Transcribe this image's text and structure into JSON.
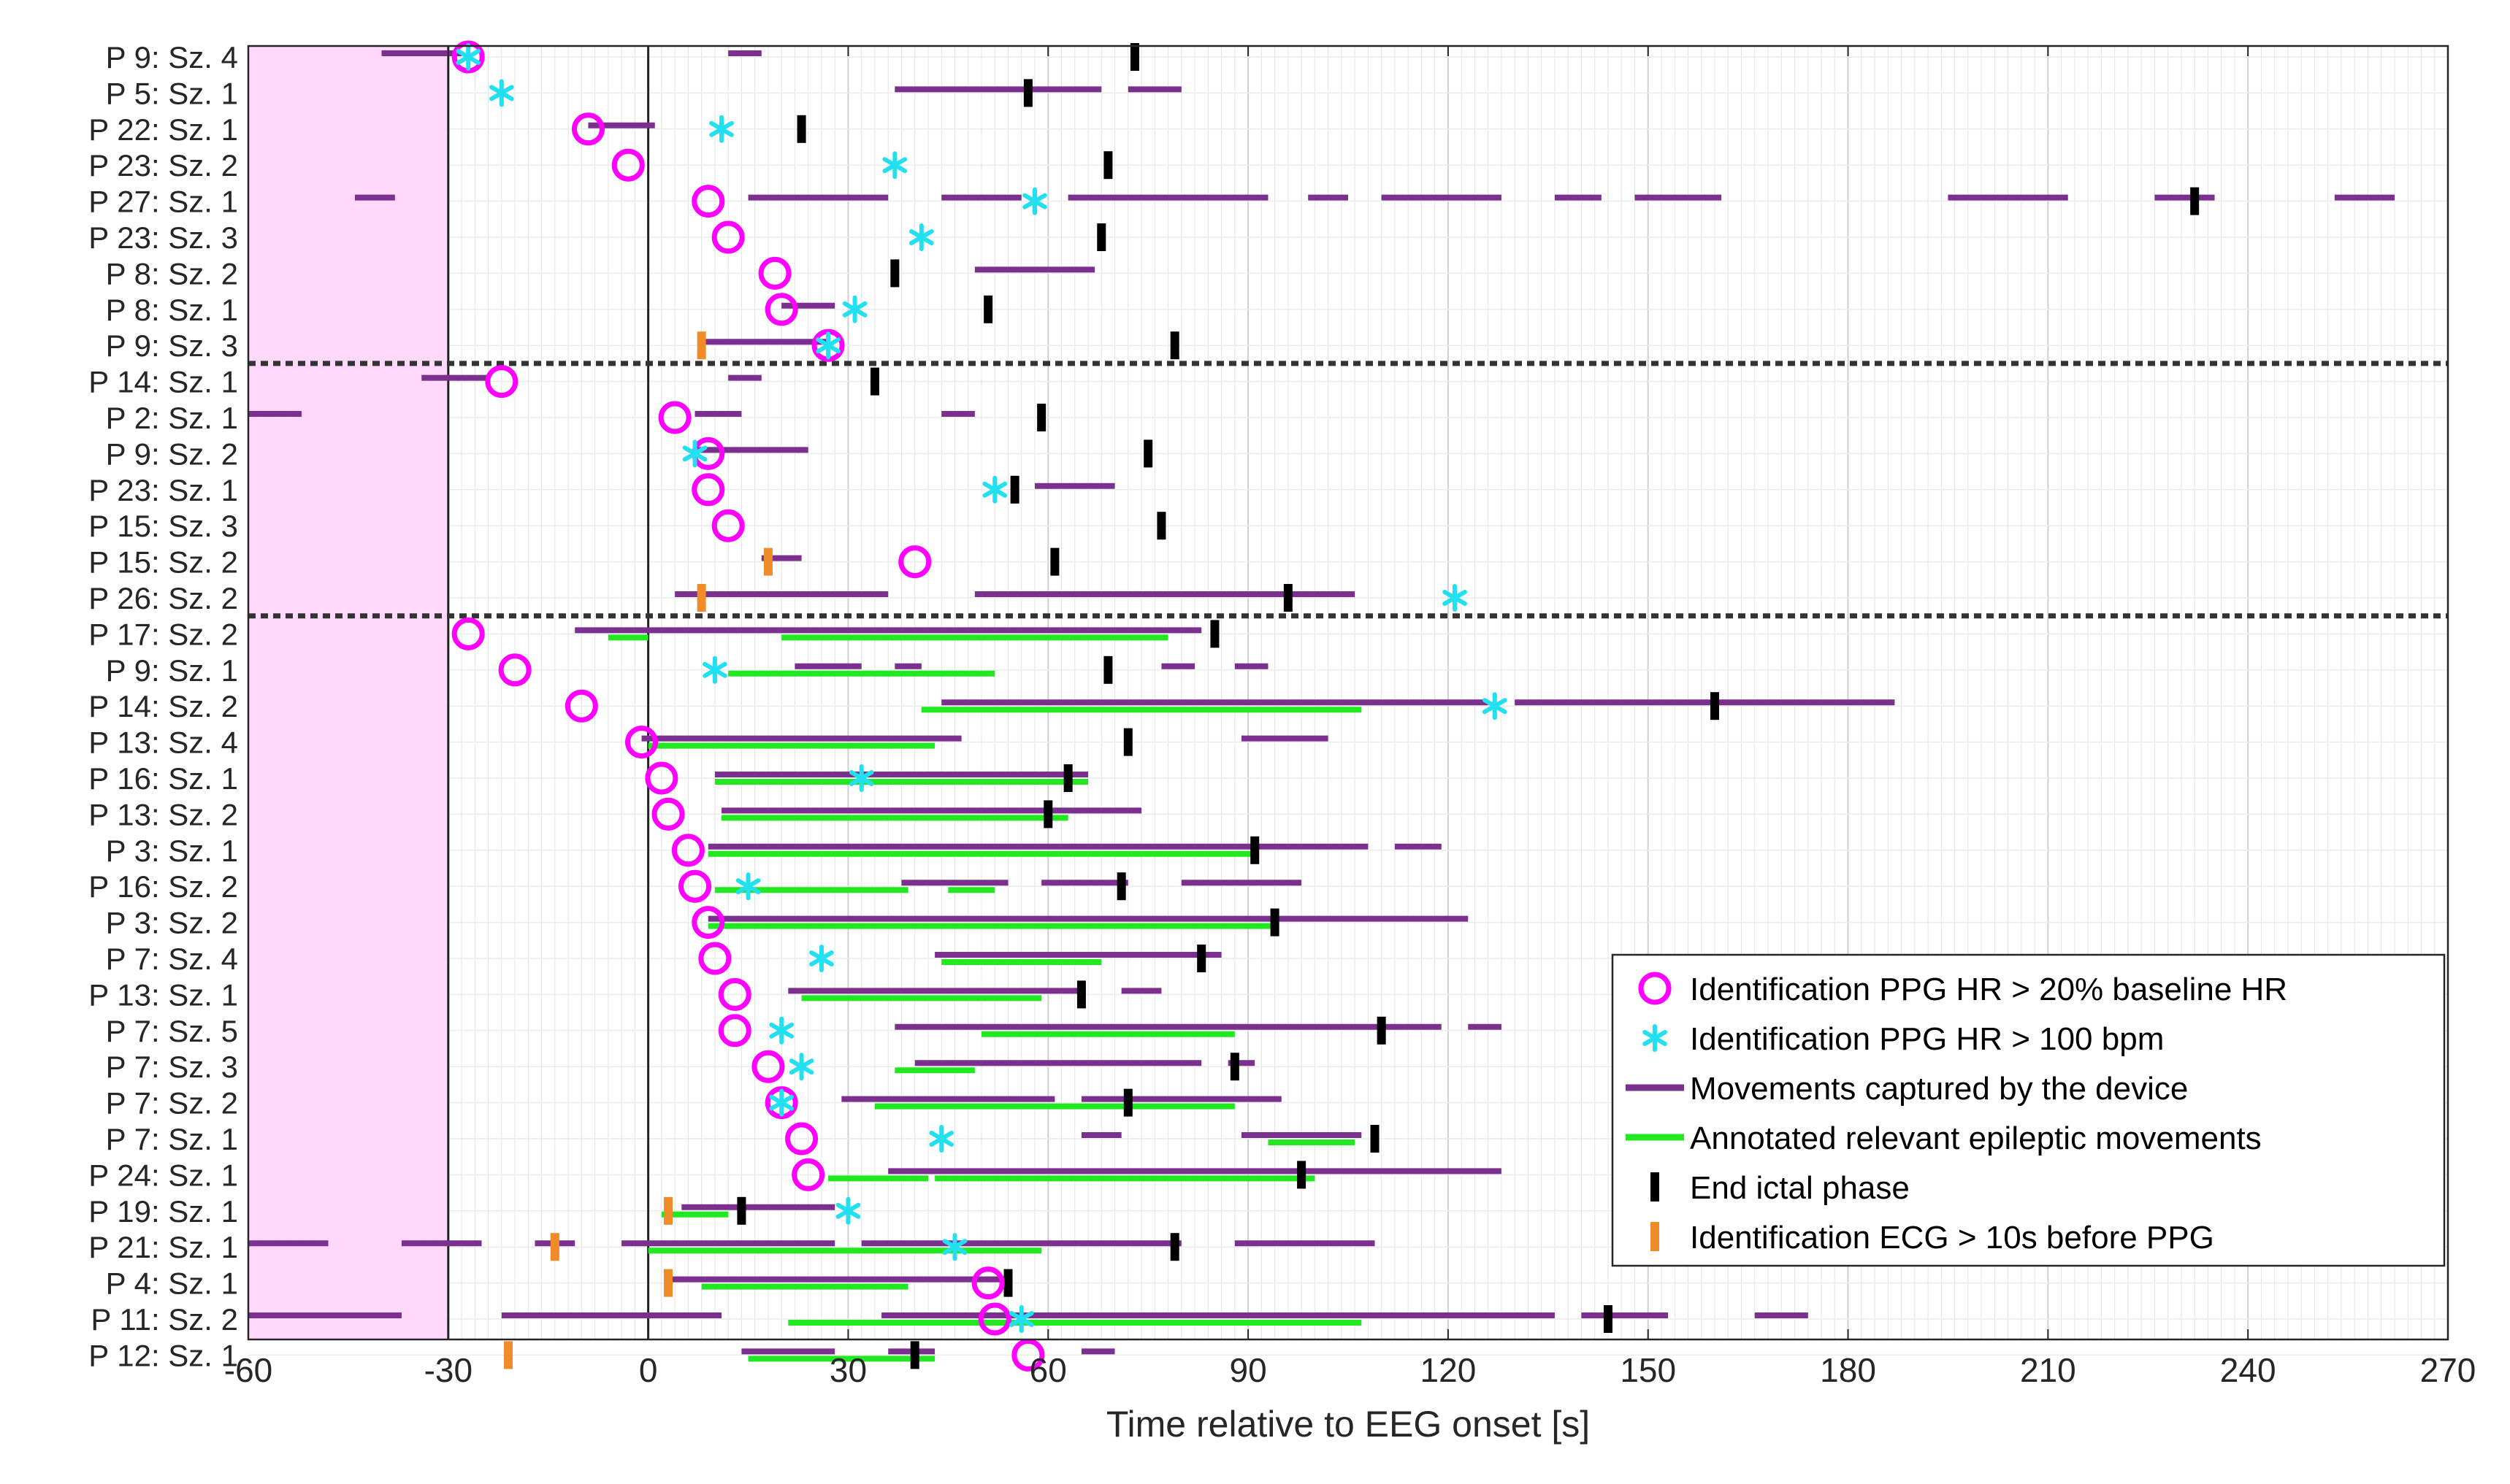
{
  "chart_data": {
    "type": "timeline",
    "xlabel": "Time relative to EEG onset [s]",
    "xlim": [
      -60,
      270
    ],
    "xticks": [
      -60,
      -30,
      0,
      30,
      60,
      90,
      120,
      150,
      180,
      210,
      240,
      270
    ],
    "shaded_region": {
      "x": [
        -60,
        -30
      ],
      "color": "#ffd6fb"
    },
    "vertical_lines": [
      -30,
      0
    ],
    "group_separators_after_rows": [
      8,
      15
    ],
    "colors": {
      "ppg20": "#ff00ff",
      "ppg100": "#22e0f0",
      "movement": "#7b2f8e",
      "annotated": "#22e822",
      "end": "#000000",
      "ecg": "#f08c28"
    },
    "legend": {
      "position": "bottom-right",
      "items": [
        {
          "key": "ppg20",
          "label": "Identification PPG HR > 20% baseline HR"
        },
        {
          "key": "ppg100",
          "label": "Identification PPG HR > 100 bpm"
        },
        {
          "key": "movement",
          "label": "Movements captured by the device"
        },
        {
          "key": "annotated",
          "label": "Annotated relevant epileptic movements"
        },
        {
          "key": "end",
          "label": "End ictal phase"
        },
        {
          "key": "ecg",
          "label": "Identification ECG > 10s before PPG"
        }
      ]
    },
    "rows": [
      {
        "label": "P 9: Sz. 4",
        "ppg20": -27,
        "ppg100": -27,
        "end": 73,
        "ecg": null,
        "movements": [
          [
            -40,
            -28
          ],
          [
            12,
            17
          ]
        ],
        "annotated": []
      },
      {
        "label": "P 5: Sz. 1",
        "ppg20": null,
        "ppg100": -22,
        "end": 57,
        "ecg": null,
        "movements": [
          [
            37,
            68
          ],
          [
            72,
            80
          ]
        ],
        "annotated": []
      },
      {
        "label": "P 22: Sz. 1",
        "ppg20": -9,
        "ppg100": 11,
        "end": 23,
        "ecg": null,
        "movements": [
          [
            -9,
            1
          ]
        ],
        "annotated": []
      },
      {
        "label": "P 23: Sz. 2",
        "ppg20": -3,
        "ppg100": 37,
        "end": 69,
        "ecg": null,
        "movements": [],
        "annotated": []
      },
      {
        "label": "P 27: Sz. 1",
        "ppg20": 9,
        "ppg100": 58,
        "end": 232,
        "ecg": null,
        "movements": [
          [
            -44,
            -38
          ],
          [
            15,
            36
          ],
          [
            44,
            56
          ],
          [
            63,
            93
          ],
          [
            99,
            105
          ],
          [
            110,
            128
          ],
          [
            136,
            143
          ],
          [
            148,
            161
          ],
          [
            195,
            213
          ],
          [
            226,
            235
          ],
          [
            253,
            262
          ]
        ],
        "annotated": []
      },
      {
        "label": "P 23: Sz. 3",
        "ppg20": 12,
        "ppg100": 41,
        "end": 68,
        "ecg": null,
        "movements": [],
        "annotated": []
      },
      {
        "label": "P 8: Sz. 2",
        "ppg20": 19,
        "ppg100": null,
        "end": 37,
        "ecg": null,
        "movements": [
          [
            49,
            67
          ]
        ],
        "annotated": []
      },
      {
        "label": "P 8: Sz. 1",
        "ppg20": 20,
        "ppg100": 31,
        "end": 51,
        "ecg": null,
        "movements": [
          [
            20,
            28
          ]
        ],
        "annotated": []
      },
      {
        "label": "P 9: Sz. 3",
        "ppg20": 27,
        "ppg100": 27,
        "end": 79,
        "ecg": 8,
        "movements": [
          [
            8,
            27
          ]
        ],
        "annotated": []
      },
      {
        "label": "P 14: Sz. 1",
        "ppg20": -22,
        "ppg100": null,
        "end": 34,
        "ecg": null,
        "movements": [
          [
            -34,
            -24
          ],
          [
            12,
            17
          ]
        ],
        "annotated": []
      },
      {
        "label": "P 2: Sz. 1",
        "ppg20": 4,
        "ppg100": null,
        "end": 59,
        "ecg": null,
        "movements": [
          [
            -60,
            -52
          ],
          [
            7,
            14
          ],
          [
            44,
            49
          ]
        ],
        "annotated": []
      },
      {
        "label": "P 9: Sz. 2",
        "ppg20": 9,
        "ppg100": 7,
        "end": 75,
        "ecg": null,
        "movements": [
          [
            7,
            24
          ]
        ],
        "annotated": []
      },
      {
        "label": "P 23: Sz. 1",
        "ppg20": 9,
        "ppg100": 52,
        "end": 55,
        "ecg": null,
        "movements": [
          [
            58,
            70
          ]
        ],
        "annotated": []
      },
      {
        "label": "P 15: Sz. 3",
        "ppg20": 12,
        "ppg100": null,
        "end": 77,
        "ecg": null,
        "movements": [],
        "annotated": []
      },
      {
        "label": "P 15: Sz. 2",
        "ppg20": 40,
        "ppg100": null,
        "end": 61,
        "ecg": 18,
        "movements": [
          [
            17,
            23
          ]
        ],
        "annotated": []
      },
      {
        "label": "P 26: Sz. 2",
        "ppg20": null,
        "ppg100": 121,
        "end": 96,
        "ecg": 8,
        "movements": [
          [
            4,
            36
          ],
          [
            49,
            106
          ]
        ],
        "annotated": []
      },
      {
        "label": "P 17: Sz. 2",
        "ppg20": -27,
        "ppg100": null,
        "end": 85,
        "ecg": null,
        "movements": [
          [
            -11,
            83
          ]
        ],
        "annotated": [
          [
            -6,
            0
          ],
          [
            20,
            78
          ]
        ]
      },
      {
        "label": "P 9: Sz. 1",
        "ppg20": -20,
        "ppg100": 10,
        "end": 69,
        "ecg": null,
        "movements": [
          [
            22,
            32
          ],
          [
            37,
            41
          ],
          [
            77,
            82
          ],
          [
            88,
            93
          ]
        ],
        "annotated": [
          [
            12,
            52
          ]
        ]
      },
      {
        "label": "P 14: Sz. 2",
        "ppg20": -10,
        "ppg100": 127,
        "end": 160,
        "ecg": null,
        "movements": [
          [
            44,
            126
          ],
          [
            130,
            187
          ]
        ],
        "annotated": [
          [
            41,
            107
          ]
        ]
      },
      {
        "label": "P 13: Sz. 4",
        "ppg20": -1,
        "ppg100": null,
        "end": 72,
        "ecg": null,
        "movements": [
          [
            -1,
            47
          ],
          [
            89,
            102
          ]
        ],
        "annotated": [
          [
            0,
            43
          ]
        ]
      },
      {
        "label": "P 16: Sz. 1",
        "ppg20": 2,
        "ppg100": 32,
        "end": 63,
        "ecg": null,
        "movements": [
          [
            10,
            66
          ]
        ],
        "annotated": [
          [
            10,
            66
          ]
        ]
      },
      {
        "label": "P 13: Sz. 2",
        "ppg20": 3,
        "ppg100": null,
        "end": 60,
        "ecg": null,
        "movements": [
          [
            11,
            74
          ]
        ],
        "annotated": [
          [
            11,
            63
          ]
        ]
      },
      {
        "label": "P 3: Sz. 1",
        "ppg20": 6,
        "ppg100": null,
        "end": 91,
        "ecg": null,
        "movements": [
          [
            9,
            108
          ],
          [
            112,
            119
          ]
        ],
        "annotated": [
          [
            9,
            91
          ]
        ]
      },
      {
        "label": "P 16: Sz. 2",
        "ppg20": 7,
        "ppg100": 15,
        "end": 71,
        "ecg": null,
        "movements": [
          [
            38,
            54
          ],
          [
            59,
            72
          ],
          [
            80,
            98
          ]
        ],
        "annotated": [
          [
            10,
            39
          ],
          [
            45,
            52
          ]
        ]
      },
      {
        "label": "P 3: Sz. 2",
        "ppg20": 9,
        "ppg100": null,
        "end": 94,
        "ecg": null,
        "movements": [
          [
            9,
            123
          ]
        ],
        "annotated": [
          [
            9,
            94
          ]
        ]
      },
      {
        "label": "P 7: Sz. 4",
        "ppg20": 10,
        "ppg100": 26,
        "end": 83,
        "ecg": null,
        "movements": [
          [
            43,
            86
          ]
        ],
        "annotated": [
          [
            44,
            68
          ]
        ]
      },
      {
        "label": "P 13: Sz. 1",
        "ppg20": 13,
        "ppg100": null,
        "end": 65,
        "ecg": null,
        "movements": [
          [
            21,
            65
          ],
          [
            71,
            77
          ]
        ],
        "annotated": [
          [
            23,
            59
          ]
        ]
      },
      {
        "label": "P 7: Sz. 5",
        "ppg20": 13,
        "ppg100": 20,
        "end": 110,
        "ecg": null,
        "movements": [
          [
            37,
            119
          ],
          [
            123,
            128
          ]
        ],
        "annotated": [
          [
            50,
            88
          ]
        ]
      },
      {
        "label": "P 7: Sz. 3",
        "ppg20": 18,
        "ppg100": 23,
        "end": 88,
        "ecg": null,
        "movements": [
          [
            40,
            83
          ],
          [
            87,
            91
          ]
        ],
        "annotated": [
          [
            37,
            49
          ]
        ]
      },
      {
        "label": "P 7: Sz. 2",
        "ppg20": 20,
        "ppg100": 20,
        "end": 72,
        "ecg": null,
        "movements": [
          [
            29,
            61
          ],
          [
            65,
            95
          ]
        ],
        "annotated": [
          [
            34,
            88
          ]
        ]
      },
      {
        "label": "P 7: Sz. 1",
        "ppg20": 23,
        "ppg100": 44,
        "end": 109,
        "ecg": null,
        "movements": [
          [
            65,
            71
          ],
          [
            89,
            107
          ]
        ],
        "annotated": [
          [
            93,
            106
          ]
        ]
      },
      {
        "label": "P 24: Sz. 1",
        "ppg20": 24,
        "ppg100": null,
        "end": 98,
        "ecg": null,
        "movements": [
          [
            36,
            128
          ]
        ],
        "annotated": [
          [
            27,
            42
          ],
          [
            43,
            100
          ]
        ]
      },
      {
        "label": "P 19: Sz. 1",
        "ppg20": null,
        "ppg100": 30,
        "end": 14,
        "ecg": 3,
        "movements": [
          [
            5,
            28
          ]
        ],
        "annotated": [
          [
            2,
            12
          ]
        ]
      },
      {
        "label": "P 21: Sz. 1",
        "ppg20": null,
        "ppg100": 46,
        "end": 79,
        "ecg": -14,
        "movements": [
          [
            -60,
            -48
          ],
          [
            -37,
            -25
          ],
          [
            -17,
            -11
          ],
          [
            -4,
            28
          ],
          [
            32,
            80
          ],
          [
            88,
            109
          ]
        ],
        "annotated": [
          [
            0,
            59
          ]
        ]
      },
      {
        "label": "P 4: Sz. 1",
        "ppg20": 51,
        "ppg100": null,
        "end": 54,
        "ecg": 3,
        "movements": [
          [
            3,
            54
          ]
        ],
        "annotated": [
          [
            8,
            39
          ]
        ]
      },
      {
        "label": "P 11: Sz. 2",
        "ppg20": 52,
        "ppg100": 56,
        "end": 144,
        "ecg": null,
        "movements": [
          [
            -60,
            -37
          ],
          [
            -22,
            11
          ],
          [
            35,
            136
          ],
          [
            140,
            153
          ],
          [
            166,
            174
          ]
        ],
        "annotated": [
          [
            21,
            107
          ]
        ]
      },
      {
        "label": "P 12: Sz. 1",
        "ppg20": 57,
        "ppg100": null,
        "end": 40,
        "ecg": -21,
        "movements": [
          [
            14,
            28
          ],
          [
            36,
            43
          ],
          [
            65,
            70
          ]
        ],
        "annotated": [
          [
            15,
            43
          ]
        ]
      }
    ]
  }
}
